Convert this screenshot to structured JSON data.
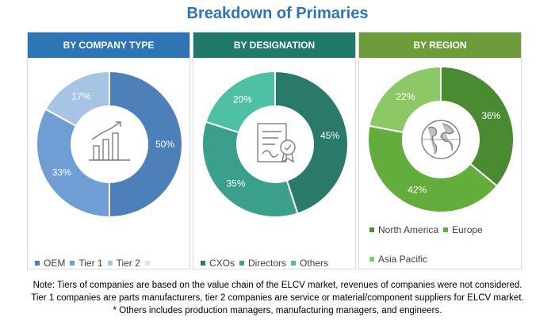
{
  "title": "Breakdown of Primaries",
  "colors": {
    "header_company": "#2e75b6",
    "header_designation": "#1f7a6c",
    "header_region": "#6e9c3a"
  },
  "chart_data": [
    {
      "type": "pie",
      "title": "BY COMPANY TYPE",
      "donut": true,
      "icon": "bar-chart-icon",
      "categories": [
        "OEM",
        "Tier 1",
        "Tier 2",
        ""
      ],
      "values": [
        50,
        33,
        17,
        0
      ],
      "labels": [
        "50%",
        "33%",
        "17%",
        ""
      ],
      "colors": [
        "#4d7fb8",
        "#6e9ed4",
        "#a7c4e4",
        "#d6e3f1"
      ],
      "legend_position": "bottom"
    },
    {
      "type": "pie",
      "title": "BY DESIGNATION",
      "donut": true,
      "icon": "certificate-icon",
      "categories": [
        "CXOs",
        "Directors",
        "Others"
      ],
      "values": [
        45,
        35,
        20
      ],
      "labels": [
        "45%",
        "35%",
        "20%"
      ],
      "colors": [
        "#2a7a6a",
        "#3aa08b",
        "#4fc0a4"
      ],
      "legend_position": "bottom"
    },
    {
      "type": "pie",
      "title": "BY REGION",
      "donut": true,
      "icon": "globe-icon",
      "categories": [
        "North America",
        "Europe",
        "Asia Pacific"
      ],
      "values": [
        36,
        42,
        22
      ],
      "labels": [
        "36%",
        "42%",
        "22%"
      ],
      "colors": [
        "#4a8a30",
        "#63ad3c",
        "#8dc866"
      ],
      "legend_position": "bottom-right"
    }
  ],
  "notes": [
    "Note: Tiers of companies are based on the value chain of the ELCV market, revenues of companies were not considered.",
    "Tier 1 companies are parts manufacturers, tier 2 companies are service or material/component suppliers for ELCV market.",
    "* Others includes production managers, manufacturing managers, and engineers."
  ]
}
